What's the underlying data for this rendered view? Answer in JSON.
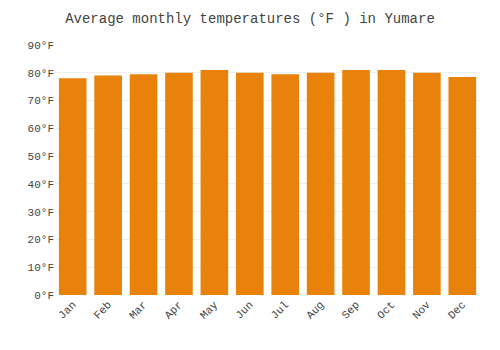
{
  "chart_data": {
    "type": "bar",
    "title": "Average monthly temperatures (°F ) in Yumare",
    "categories": [
      "Jan",
      "Feb",
      "Mar",
      "Apr",
      "May",
      "Jun",
      "Jul",
      "Aug",
      "Sep",
      "Oct",
      "Nov",
      "Dec"
    ],
    "values": [
      78,
      79,
      79.5,
      80,
      81,
      80,
      79.5,
      80,
      81,
      81,
      80,
      78.5
    ],
    "color": "#E8820A",
    "ylim": [
      0,
      90
    ],
    "yticks": [
      {
        "value": 0,
        "label": "0°F"
      },
      {
        "value": 10,
        "label": "10°F"
      },
      {
        "value": 20,
        "label": "20°F"
      },
      {
        "value": 30,
        "label": "30°F"
      },
      {
        "value": 40,
        "label": "40°F"
      },
      {
        "value": 50,
        "label": "50°F"
      },
      {
        "value": 60,
        "label": "60°F"
      },
      {
        "value": 70,
        "label": "70°F"
      },
      {
        "value": 80,
        "label": "80°F"
      },
      {
        "value": 90,
        "label": "90°F"
      }
    ],
    "grid": true
  }
}
